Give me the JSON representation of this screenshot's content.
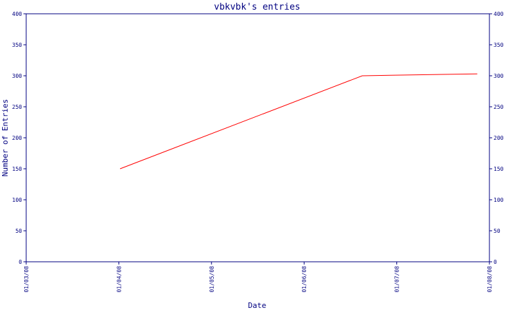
{
  "chart_data": {
    "type": "line",
    "title": "vbkvbk's entries",
    "xlabel": "Date",
    "ylabel": "Number of Entries",
    "x_ticks": [
      "01/03/08",
      "01/04/08",
      "01/05/08",
      "01/06/08",
      "01/07/08",
      "01/08/08"
    ],
    "y_ticks": [
      0,
      50,
      100,
      150,
      200,
      250,
      300,
      350,
      400
    ],
    "ylim": [
      0,
      400
    ],
    "xlim": [
      "2008-03-01",
      "2008-08-01"
    ],
    "dual_y_axis": true,
    "grid": false,
    "legend": "none",
    "series": [
      {
        "x": [
          "2008-04-01",
          "2008-06-20",
          "2008-07-01",
          "2008-07-28"
        ],
        "y": [
          150,
          300,
          301,
          303
        ]
      }
    ]
  },
  "colors": {
    "axis": "#000080",
    "series_line": "#ff0000",
    "title": "#000080",
    "background": "#ffffff"
  }
}
